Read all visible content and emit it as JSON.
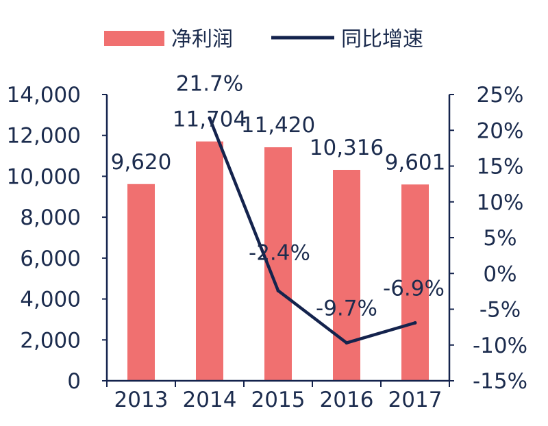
{
  "chart_data": {
    "type": "bar",
    "categories": [
      "2013",
      "2014",
      "2015",
      "2016",
      "2017"
    ],
    "series": [
      {
        "name": "净利润",
        "type": "bar",
        "axis": "left",
        "values": [
          9620,
          11704,
          11420,
          10316,
          9601
        ],
        "labels": [
          "9,620",
          "11,704",
          "11,420",
          "10,316",
          "9,601"
        ],
        "color": "#f07070"
      },
      {
        "name": "同比增速",
        "type": "line",
        "axis": "right",
        "values": [
          null,
          21.7,
          -2.4,
          -9.7,
          -6.9
        ],
        "labels": [
          "",
          "21.7%",
          "-2.4%",
          "-9.7%",
          "-6.9%"
        ],
        "color": "#14234d"
      }
    ],
    "y_left": {
      "range": [
        0,
        14000
      ],
      "ticks": [
        "14,000",
        "12,000",
        "10,000",
        "8,000",
        "6,000",
        "4,000",
        "2,000",
        "0"
      ]
    },
    "y_right": {
      "range": [
        -15,
        25
      ],
      "ticks": [
        "25%",
        "20%",
        "15%",
        "10%",
        "5%",
        "0%",
        "-5%",
        "-10%",
        "-15%"
      ]
    },
    "legend_position": "top",
    "grid": false
  }
}
